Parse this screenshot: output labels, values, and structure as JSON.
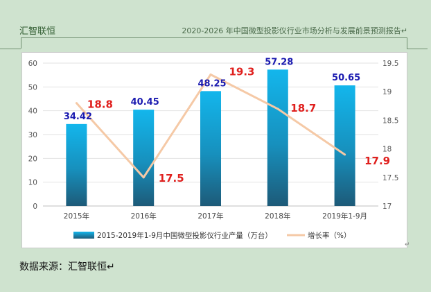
{
  "header": {
    "left": "汇智联恒",
    "right": "2020-2026 年中国微型投影仪行业市场分析与发展前景预测报告↵"
  },
  "footer": {
    "source": "数据来源：汇智联恒↵",
    "para_mark": "↵"
  },
  "chart_data": {
    "type": "bar",
    "categories": [
      "2015年",
      "2016年",
      "2017年",
      "2018年",
      "2019年1-9月"
    ],
    "series": [
      {
        "name": "2015-2019年1-9月中国微型投影仪行业产量（万台）",
        "type": "bar",
        "axis": "left",
        "values": [
          34.42,
          40.45,
          48.25,
          57.28,
          50.65
        ]
      },
      {
        "name": "增长率（%）",
        "type": "line",
        "axis": "right",
        "values": [
          18.8,
          17.5,
          19.3,
          18.7,
          17.9
        ]
      }
    ],
    "y_left": {
      "min": 0,
      "max": 60,
      "ticks": [
        "0",
        "10",
        "20",
        "30",
        "40",
        "50",
        "60"
      ]
    },
    "y_right": {
      "min": 17,
      "max": 19.5,
      "ticks": [
        "17",
        "17.5",
        "18",
        "18.5",
        "19",
        "19.5"
      ]
    },
    "bar_labels": [
      "34.42",
      "40.45",
      "48.25",
      "57.28",
      "50.65"
    ],
    "line_labels": [
      "18.8",
      "17.5",
      "19.3",
      "18.7",
      "17.9"
    ],
    "legend_position": "bottom",
    "colors": {
      "bar_top": "#13b6ec",
      "bar_bottom": "#1d5a78",
      "line": "#f5c9a6",
      "bar_label": "#1a1ab0",
      "line_label": "#e0201e"
    }
  }
}
